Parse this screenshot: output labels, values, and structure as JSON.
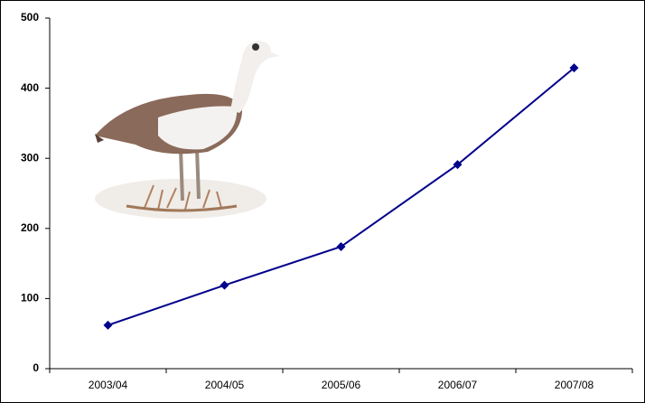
{
  "chart_data": {
    "type": "line",
    "categories": [
      "2003/04",
      "2004/05",
      "2005/06",
      "2006/07",
      "2007/08"
    ],
    "values": [
      62,
      119,
      174,
      291,
      429
    ],
    "color": "#00008b",
    "ylim": [
      0,
      500
    ],
    "yticks": [
      0,
      100,
      200,
      300,
      400,
      500
    ],
    "grid": false
  }
}
